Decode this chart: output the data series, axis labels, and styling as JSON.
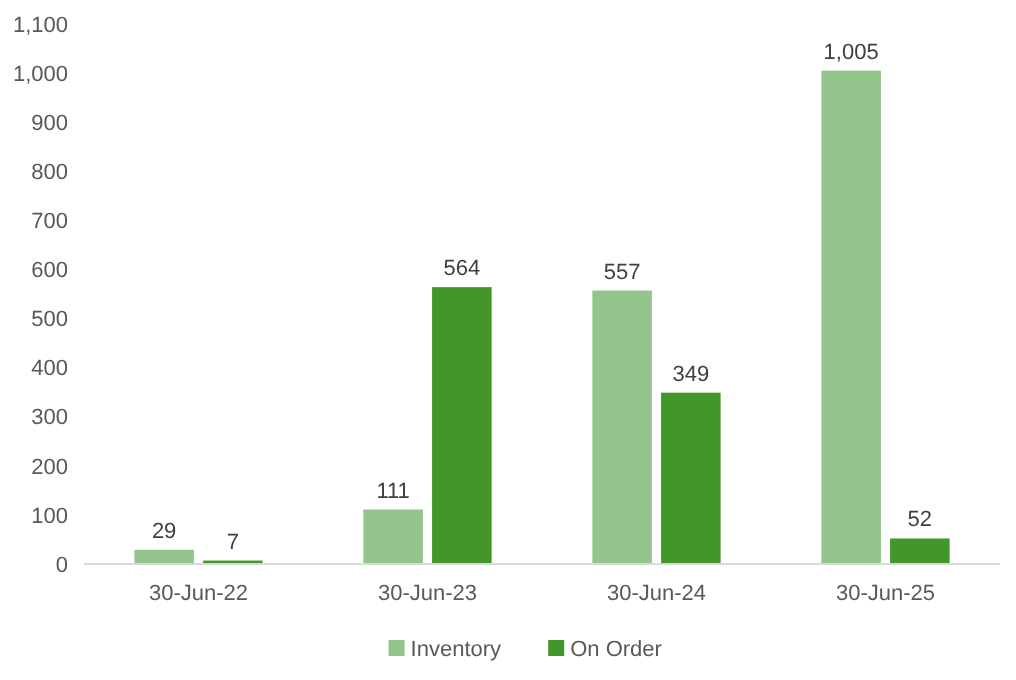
{
  "chart_data": {
    "type": "bar",
    "categories": [
      "30-Jun-22",
      "30-Jun-23",
      "30-Jun-24",
      "30-Jun-25"
    ],
    "series": [
      {
        "name": "Inventory",
        "color": "#93c48b",
        "values": [
          29,
          111,
          557,
          1005
        ],
        "value_labels": [
          "29",
          "111",
          "557",
          "1,005"
        ]
      },
      {
        "name": "On Order",
        "color": "#43962a",
        "values": [
          7,
          564,
          349,
          52
        ],
        "value_labels": [
          "7",
          "564",
          "349",
          "52"
        ]
      }
    ],
    "ylim": [
      0,
      1100
    ],
    "yticks": [
      0,
      100,
      200,
      300,
      400,
      500,
      600,
      700,
      800,
      900,
      {
        "value": 1000,
        "label": "1,000"
      },
      {
        "value": 1100,
        "label": "1,100"
      }
    ],
    "legend": "bottom",
    "grid": false
  }
}
